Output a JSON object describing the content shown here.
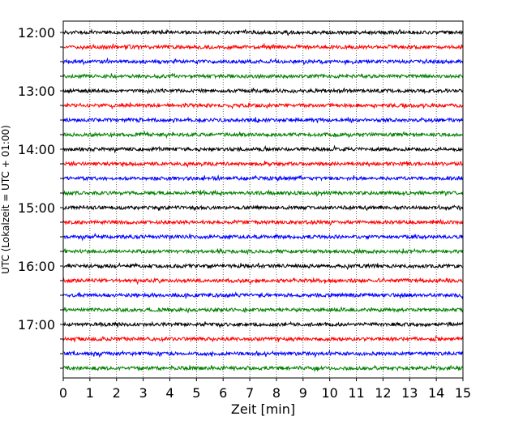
{
  "chart_data": {
    "type": "line",
    "plot_kind": "seismic helicorder",
    "title": "",
    "xlabel": "Zeit  [min]",
    "ylabel": "UTC (Lokalzeit = UTC + 01:00)",
    "xlim": [
      0,
      15
    ],
    "x_ticks": [
      "0",
      "1",
      "2",
      "3",
      "4",
      "5",
      "6",
      "7",
      "8",
      "9",
      "10",
      "11",
      "12",
      "13",
      "14",
      "15"
    ],
    "y_tick_labels": [
      "12:00",
      "13:00",
      "14:00",
      "15:00",
      "16:00",
      "17:00"
    ],
    "grid": {
      "vertical": true,
      "style": "dotted",
      "color": "#000000"
    },
    "trace_colors": [
      "#000000",
      "#ff0000",
      "#0000ff",
      "#008000"
    ],
    "row_start_times": [
      "12:00",
      "12:15",
      "12:30",
      "12:45",
      "13:00",
      "13:15",
      "13:30",
      "13:45",
      "14:00",
      "14:15",
      "14:30",
      "14:45",
      "15:00",
      "15:15",
      "15:30",
      "15:45",
      "16:00",
      "16:15",
      "16:30",
      "16:45",
      "17:00",
      "17:15",
      "17:30",
      "17:45"
    ],
    "minutes_per_row": 15,
    "signal": "continuous background noise, no prominent events"
  }
}
